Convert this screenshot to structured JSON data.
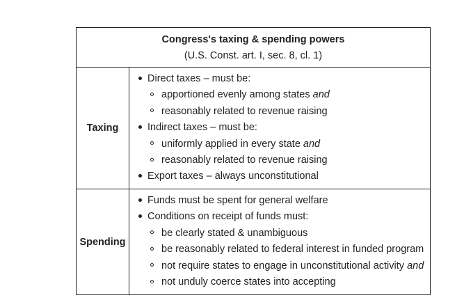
{
  "table": {
    "title": "Congress's taxing & spending powers",
    "subtitle": "(U.S. Const. art. I, sec. 8, cl. 1)",
    "taxing": {
      "label": "Taxing",
      "items": [
        {
          "text": "Direct taxes – must be:",
          "em": ""
        },
        {
          "text": "apportioned evenly among states ",
          "em": "and"
        },
        {
          "text": "reasonably related to revenue raising",
          "em": ""
        },
        {
          "text": "Indirect taxes – must be:",
          "em": ""
        },
        {
          "text": "uniformly applied in every state ",
          "em": "and"
        },
        {
          "text": "reasonably related to revenue raising",
          "em": ""
        },
        {
          "text": "Export taxes – always unconstitutional",
          "em": ""
        }
      ]
    },
    "spending": {
      "label": "Spending",
      "items": [
        {
          "text": "Funds must be spent for general welfare",
          "em": ""
        },
        {
          "text": "Conditions on receipt of funds must:",
          "em": ""
        },
        {
          "text": "be clearly stated & unambiguous",
          "em": ""
        },
        {
          "text": "be reasonably related to federal interest in funded program",
          "em": ""
        },
        {
          "text": "not require states to engage in unconstitutional activity ",
          "em": "and"
        },
        {
          "text": "not unduly coerce states into accepting",
          "em": ""
        }
      ]
    }
  }
}
